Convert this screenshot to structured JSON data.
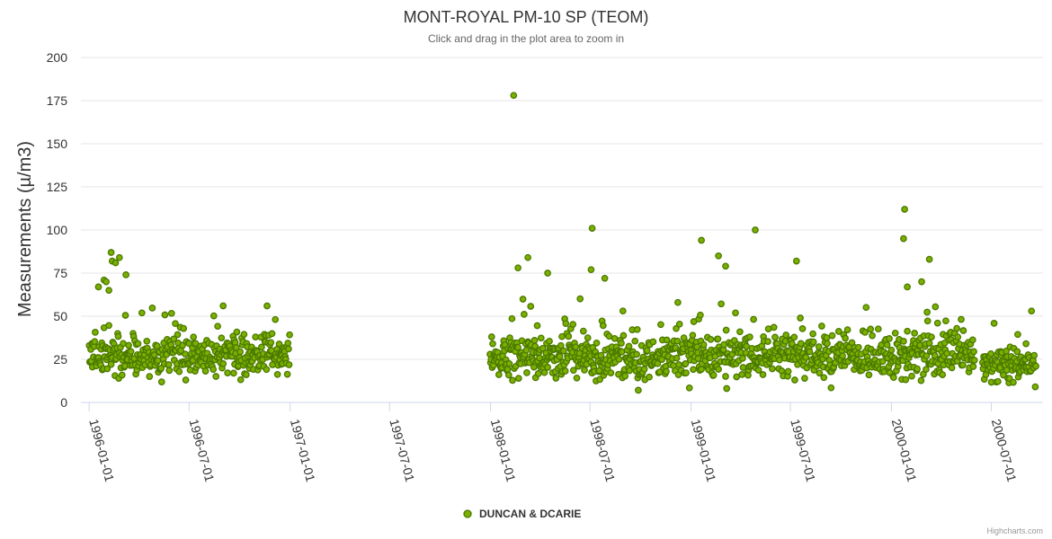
{
  "chart_data": {
    "type": "scatter",
    "title": "MONT-ROYAL PM-10 SP (TEOM)",
    "subtitle": "Click and drag in the plot area to zoom in",
    "ylabel": "Measurements (µ/m3)",
    "xlabel": "",
    "ylim": [
      0,
      200
    ],
    "yticks": [
      0,
      25,
      50,
      75,
      100,
      125,
      150,
      175,
      200
    ],
    "xlim": [
      "1995-12-17",
      "2000-10-03"
    ],
    "xticks": [
      "1996-01-01",
      "1996-07-01",
      "1997-01-01",
      "1997-07-01",
      "1998-01-01",
      "1998-07-01",
      "1999-01-01",
      "1999-07-01",
      "2000-01-01",
      "2000-07-01"
    ],
    "grid": true,
    "legend_position": "bottom-center",
    "series": [
      {
        "name": "DUNCAN & DCARIE",
        "color": "#7cb000",
        "segments": [
          {
            "start": "1996-01-01",
            "end": "1996-12-31",
            "mean": 27,
            "spread": 11
          },
          {
            "start": "1997-12-31",
            "end": "2000-05-31",
            "mean": 27,
            "spread": 12
          },
          {
            "start": "2000-06-15",
            "end": "2000-09-20",
            "mean": 22,
            "spread": 9
          }
        ],
        "notable_points": [
          {
            "x": "1996-01-18",
            "y": 67
          },
          {
            "x": "1996-01-28",
            "y": 71
          },
          {
            "x": "1996-02-01",
            "y": 70
          },
          {
            "x": "1996-02-06",
            "y": 65
          },
          {
            "x": "1996-02-10",
            "y": 87
          },
          {
            "x": "1996-02-12",
            "y": 82
          },
          {
            "x": "1996-02-18",
            "y": 81
          },
          {
            "x": "1996-02-25",
            "y": 84
          },
          {
            "x": "1996-03-08",
            "y": 74
          },
          {
            "x": "1996-09-01",
            "y": 56
          },
          {
            "x": "1996-11-20",
            "y": 56
          },
          {
            "x": "1998-02-12",
            "y": 178
          },
          {
            "x": "1998-03-10",
            "y": 84
          },
          {
            "x": "1998-02-20",
            "y": 78
          },
          {
            "x": "1998-04-15",
            "y": 75
          },
          {
            "x": "1998-07-05",
            "y": 101
          },
          {
            "x": "1998-07-03",
            "y": 77
          },
          {
            "x": "1998-07-28",
            "y": 72
          },
          {
            "x": "1999-01-20",
            "y": 94
          },
          {
            "x": "1999-02-20",
            "y": 85
          },
          {
            "x": "1999-03-05",
            "y": 79
          },
          {
            "x": "1999-04-28",
            "y": 100
          },
          {
            "x": "1999-07-12",
            "y": 82
          },
          {
            "x": "2000-01-25",
            "y": 112
          },
          {
            "x": "2000-01-23",
            "y": 95
          },
          {
            "x": "2000-03-10",
            "y": 83
          },
          {
            "x": "2000-01-30",
            "y": 67
          },
          {
            "x": "2000-02-25",
            "y": 70
          },
          {
            "x": "2000-09-12",
            "y": 53
          }
        ]
      }
    ]
  },
  "credits": "Highcharts.com"
}
